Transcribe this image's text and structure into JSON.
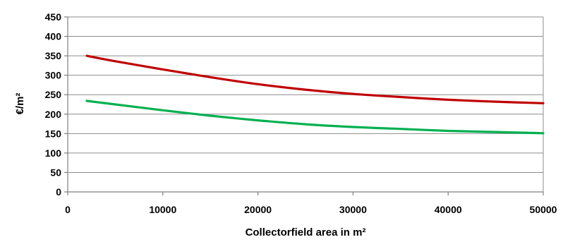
{
  "chart_data": {
    "type": "line",
    "title": "",
    "xlabel": "Collectorfield area in m²",
    "ylabel": "€/m²",
    "xlim": [
      0,
      50000
    ],
    "ylim": [
      0,
      450
    ],
    "x_ticks": [
      0,
      10000,
      20000,
      30000,
      40000,
      50000
    ],
    "y_ticks": [
      0,
      50,
      100,
      150,
      200,
      250,
      300,
      350,
      400,
      450
    ],
    "grid": "horizontal",
    "legend": "none",
    "series": [
      {
        "color": "#c00000",
        "x": [
          2000,
          5000,
          10000,
          15000,
          20000,
          25000,
          30000,
          35000,
          40000,
          45000,
          50000
        ],
        "y": [
          350,
          336,
          315,
          295,
          277,
          263,
          252,
          244,
          237,
          232,
          228
        ]
      },
      {
        "color": "#00b050",
        "x": [
          2000,
          5000,
          10000,
          15000,
          20000,
          25000,
          30000,
          35000,
          40000,
          45000,
          50000
        ],
        "y": [
          234,
          225,
          210,
          196,
          184,
          174,
          167,
          162,
          157,
          154,
          151
        ]
      }
    ]
  }
}
